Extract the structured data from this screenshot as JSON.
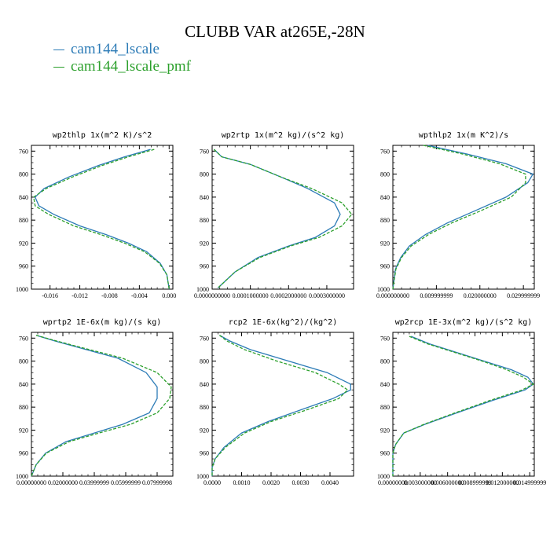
{
  "title": "CLUBB VAR at265E,-28N",
  "legend": [
    {
      "label": "cam144_lscale",
      "color": "#2c7bb6"
    },
    {
      "label": "cam144_lscale_pmf",
      "color": "#2ca02c"
    }
  ],
  "chart_data": [
    {
      "type": "line",
      "title": "wp2thlp  1x(m^2 K)/s^2",
      "xlim": [
        -0.0185,
        0.0005
      ],
      "ylim": [
        1000,
        750
      ],
      "xticks": [
        -0.016,
        -0.012,
        -0.008,
        -0.004,
        0.0
      ],
      "xtick_labels": [
        "-0.016",
        "-0.012",
        "-0.008",
        "-0.004",
        "0.000"
      ],
      "yticks": [
        760,
        800,
        840,
        880,
        920,
        960,
        1000
      ],
      "series": [
        {
          "name": "cam144_lscale",
          "x": [
            -0.0025,
            -0.006,
            -0.0095,
            -0.0135,
            -0.0168,
            -0.018,
            -0.0175,
            -0.0155,
            -0.012,
            -0.0085,
            -0.0055,
            -0.003,
            -0.0012,
            -0.0003,
            0.0
          ],
          "y": [
            757,
            770,
            785,
            805,
            825,
            840,
            855,
            870,
            890,
            905,
            920,
            935,
            955,
            975,
            1000
          ]
        },
        {
          "name": "cam144_lscale_pmf",
          "x": [
            -0.002,
            -0.0055,
            -0.009,
            -0.013,
            -0.0165,
            -0.0182,
            -0.018,
            -0.0162,
            -0.0128,
            -0.0092,
            -0.006,
            -0.0033,
            -0.0013,
            -0.0003,
            0.0
          ],
          "y": [
            757,
            770,
            785,
            805,
            825,
            840,
            855,
            870,
            890,
            905,
            920,
            935,
            955,
            975,
            1000
          ]
        }
      ]
    },
    {
      "type": "line",
      "title": "wp2rtp  1x(m^2 kg)/(s^2 kg)",
      "xlim": [
        0.0,
        0.00037
      ],
      "ylim": [
        1000,
        750
      ],
      "xticks": [
        0.0,
        0.0001,
        0.0002,
        0.0003
      ],
      "xtick_labels": [
        "0.0000000000",
        "0.0001000000",
        "0.0002000000",
        "0.0003000000"
      ],
      "yticks": [
        760,
        800,
        840,
        880,
        920,
        960,
        1000
      ],
      "series": [
        {
          "name": "cam144_lscale",
          "x": [
            5e-06,
            2.5e-05,
            0.0001,
            0.00018,
            0.00025,
            0.00032,
            0.000335,
            0.00032,
            0.00027,
            0.0002,
            0.00012,
            6e-05,
            1.5e-05
          ],
          "y": [
            757,
            770,
            783,
            805,
            825,
            850,
            870,
            890,
            910,
            925,
            945,
            970,
            998
          ]
        },
        {
          "name": "cam144_lscale_pmf",
          "x": [
            5e-06,
            2.5e-05,
            0.0001,
            0.00018,
            0.00026,
            0.00034,
            0.000365,
            0.00034,
            0.00028,
            0.000205,
            0.000125,
            6e-05,
            1.5e-05
          ],
          "y": [
            757,
            770,
            783,
            805,
            825,
            850,
            870,
            890,
            910,
            925,
            945,
            970,
            998
          ]
        }
      ]
    },
    {
      "type": "line",
      "title": "wpthlp2  1x(m K^2)/s",
      "xlim": [
        0.0,
        0.0325
      ],
      "ylim": [
        1000,
        750
      ],
      "xticks": [
        0.0,
        0.01,
        0.02,
        0.03
      ],
      "xtick_labels": [
        "0.000000000",
        "0.009999999",
        "0.020000000",
        "0.029999999"
      ],
      "yticks": [
        760,
        800,
        840,
        880,
        920,
        960,
        1000
      ],
      "series": [
        {
          "name": "cam144_lscale",
          "x": [
            0.008,
            0.017,
            0.026,
            0.0322,
            0.031,
            0.026,
            0.0185,
            0.0125,
            0.0075,
            0.0038,
            0.0018,
            0.0006,
            0.0
          ],
          "y": [
            750,
            765,
            782,
            800,
            815,
            840,
            865,
            885,
            905,
            925,
            945,
            965,
            1000
          ]
        },
        {
          "name": "cam144_lscale_pmf",
          "x": [
            0.007,
            0.016,
            0.0245,
            0.0305,
            0.0305,
            0.0272,
            0.0198,
            0.0135,
            0.0082,
            0.0042,
            0.002,
            0.0007,
            0.0
          ],
          "y": [
            750,
            765,
            782,
            800,
            815,
            840,
            865,
            885,
            905,
            925,
            945,
            965,
            1000
          ]
        }
      ]
    },
    {
      "type": "line",
      "title": "wprtp2  1E-6x(m kg)/(s kg)",
      "xlim": [
        0.0,
        0.09
      ],
      "ylim": [
        1000,
        750
      ],
      "xticks": [
        0.0,
        0.02,
        0.04,
        0.06,
        0.08
      ],
      "xtick_labels": [
        "0.00000000",
        "0.02000000",
        "0.03999999",
        "0.05999999",
        "0.07999998"
      ],
      "yticks": [
        760,
        800,
        840,
        880,
        920,
        960,
        1000
      ],
      "series": [
        {
          "name": "cam144_lscale",
          "x": [
            0.003,
            0.015,
            0.035,
            0.055,
            0.073,
            0.08,
            0.08,
            0.075,
            0.058,
            0.04,
            0.022,
            0.009,
            0.003,
            0.0
          ],
          "y": [
            755,
            765,
            780,
            795,
            820,
            845,
            865,
            890,
            910,
            925,
            940,
            960,
            980,
            1000
          ]
        },
        {
          "name": "cam144_lscale_pmf",
          "x": [
            0.003,
            0.016,
            0.037,
            0.058,
            0.08,
            0.089,
            0.088,
            0.08,
            0.063,
            0.043,
            0.024,
            0.0095,
            0.003,
            0.0
          ],
          "y": [
            755,
            765,
            780,
            795,
            820,
            845,
            865,
            890,
            910,
            925,
            940,
            960,
            980,
            1000
          ]
        }
      ]
    },
    {
      "type": "line",
      "title": "rcp2  1E-6x(kg^2)/(kg^2)",
      "xlim": [
        0.0,
        0.0048
      ],
      "ylim": [
        1000,
        750
      ],
      "xticks": [
        0.0,
        0.001,
        0.002,
        0.003,
        0.004
      ],
      "xtick_labels": [
        "0.0000",
        "0.0010",
        "0.0020",
        "0.0030",
        "0.0040"
      ],
      "yticks": [
        760,
        800,
        840,
        880,
        920,
        960,
        1000
      ],
      "series": [
        {
          "name": "cam144_lscale",
          "x": [
            0.00025,
            0.0006,
            0.0013,
            0.0026,
            0.0039,
            0.0047,
            0.0047,
            0.0041,
            0.003,
            0.0019,
            0.001,
            0.0004,
            0.0001,
            0.0,
            0.0
          ],
          "y": [
            755,
            765,
            780,
            800,
            820,
            840,
            850,
            865,
            885,
            905,
            925,
            950,
            970,
            985,
            1000
          ]
        },
        {
          "name": "cam144_lscale_pmf",
          "x": [
            0.00025,
            0.0005,
            0.0011,
            0.0022,
            0.0035,
            0.0043,
            0.0046,
            0.0043,
            0.0032,
            0.002,
            0.0011,
            0.00045,
            0.0001,
            0.0,
            0.0
          ],
          "y": [
            755,
            765,
            780,
            800,
            820,
            840,
            850,
            865,
            885,
            905,
            925,
            950,
            970,
            985,
            1000
          ]
        }
      ]
    },
    {
      "type": "line",
      "title": "wp2rcp  1E-3x(m^2 kg)/(s^2 kg)",
      "xlim": [
        0.0,
        0.0155
      ],
      "ylim": [
        1000,
        750
      ],
      "xticks": [
        0.0,
        0.003,
        0.006,
        0.009,
        0.012,
        0.015
      ],
      "xtick_labels": [
        "0.00000000",
        "0.003000000",
        "0.006000000",
        "0.008999999",
        "0.012000000",
        "0.014999999"
      ],
      "yticks": [
        760,
        800,
        840,
        880,
        920,
        960,
        1000
      ],
      "series": [
        {
          "name": "cam144_lscale",
          "x": [
            0.002,
            0.004,
            0.007,
            0.01,
            0.013,
            0.0148,
            0.0154,
            0.0145,
            0.011,
            0.007,
            0.0035,
            0.0012,
            0.0003,
            0.0,
            0.0
          ],
          "y": [
            757,
            770,
            785,
            800,
            815,
            828,
            840,
            850,
            868,
            890,
            910,
            925,
            945,
            960,
            1000
          ]
        },
        {
          "name": "cam144_lscale_pmf",
          "x": [
            0.0018,
            0.0038,
            0.0068,
            0.0098,
            0.0125,
            0.0143,
            0.0154,
            0.0142,
            0.0107,
            0.0068,
            0.0034,
            0.0012,
            0.0003,
            0.0,
            0.0
          ],
          "y": [
            757,
            770,
            785,
            800,
            815,
            828,
            840,
            850,
            868,
            890,
            910,
            925,
            945,
            960,
            1000
          ]
        }
      ]
    }
  ]
}
